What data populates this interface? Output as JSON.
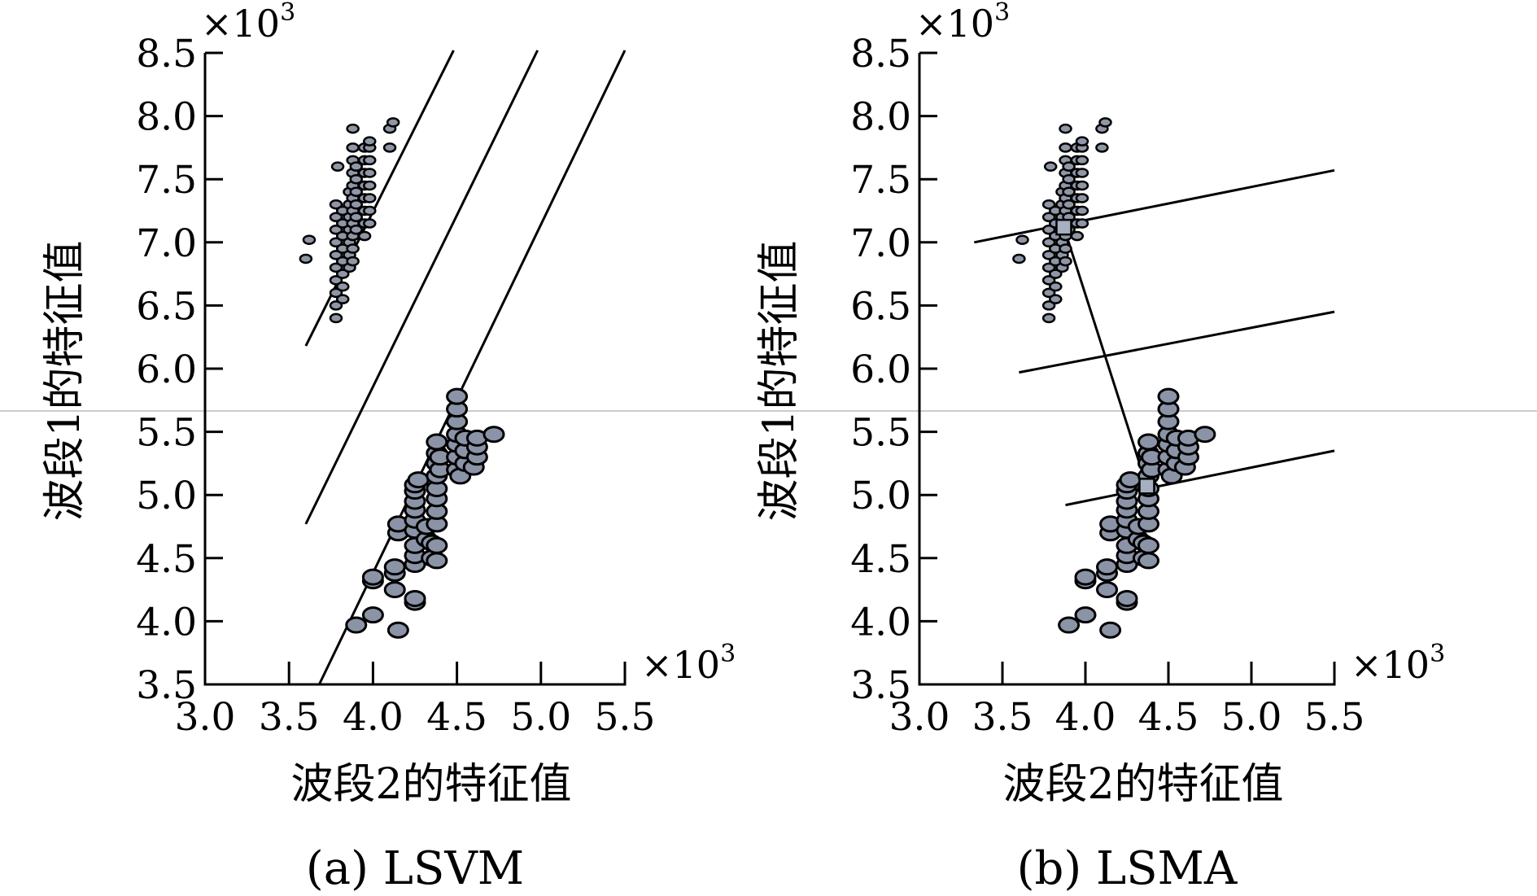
{
  "chart_data": [
    {
      "type": "scatter",
      "caption": "(a) LSVM",
      "xlabel": "波段2的特征值",
      "ylabel": "波段1的特征值",
      "x_multiplier": "×10",
      "x_multiplier_exp": "3",
      "y_multiplier": "×10",
      "y_multiplier_exp": "3",
      "xlim": [
        3.0,
        5.5
      ],
      "ylim": [
        3.5,
        8.5
      ],
      "xticks": [
        "3.0",
        "3.5",
        "4.0",
        "4.5",
        "5.0",
        "5.5"
      ],
      "yticks": [
        "3.5",
        "4.0",
        "4.5",
        "5.0",
        "5.5",
        "6.0",
        "6.5",
        "7.0",
        "7.5",
        "8.0",
        "8.5"
      ],
      "series": [
        {
          "marker": "small",
          "points": [
            [
              3.62,
              7.02
            ],
            [
              3.6,
              6.87
            ],
            [
              3.78,
              6.4
            ],
            [
              3.78,
              6.5
            ],
            [
              3.78,
              6.6
            ],
            [
              3.78,
              6.7
            ],
            [
              3.78,
              6.8
            ],
            [
              3.78,
              6.9
            ],
            [
              3.78,
              7.0
            ],
            [
              3.78,
              7.1
            ],
            [
              3.78,
              7.2
            ],
            [
              3.78,
              7.3
            ],
            [
              3.79,
              7.6
            ],
            [
              3.82,
              6.55
            ],
            [
              3.82,
              6.65
            ],
            [
              3.82,
              6.75
            ],
            [
              3.82,
              6.85
            ],
            [
              3.82,
              6.95
            ],
            [
              3.82,
              7.05
            ],
            [
              3.82,
              7.15
            ],
            [
              3.82,
              7.25
            ],
            [
              3.86,
              6.8
            ],
            [
              3.86,
              6.9
            ],
            [
              3.86,
              7.0
            ],
            [
              3.86,
              7.1
            ],
            [
              3.86,
              7.2
            ],
            [
              3.86,
              7.3
            ],
            [
              3.86,
              7.4
            ],
            [
              3.88,
              6.85
            ],
            [
              3.88,
              6.95
            ],
            [
              3.88,
              7.05
            ],
            [
              3.88,
              7.15
            ],
            [
              3.88,
              7.25
            ],
            [
              3.88,
              7.35
            ],
            [
              3.88,
              7.45
            ],
            [
              3.88,
              7.55
            ],
            [
              3.88,
              7.65
            ],
            [
              3.88,
              7.75
            ],
            [
              3.88,
              7.9
            ],
            [
              3.9,
              7.1
            ],
            [
              3.9,
              7.2
            ],
            [
              3.9,
              7.3
            ],
            [
              3.9,
              7.4
            ],
            [
              3.9,
              7.5
            ],
            [
              3.9,
              7.6
            ],
            [
              3.95,
              7.05
            ],
            [
              3.95,
              7.15
            ],
            [
              3.95,
              7.25
            ],
            [
              3.95,
              7.35
            ],
            [
              3.95,
              7.45
            ],
            [
              3.95,
              7.55
            ],
            [
              3.95,
              7.65
            ],
            [
              3.95,
              7.75
            ],
            [
              3.98,
              7.15
            ],
            [
              3.98,
              7.25
            ],
            [
              3.98,
              7.35
            ],
            [
              3.98,
              7.45
            ],
            [
              3.98,
              7.55
            ],
            [
              3.98,
              7.65
            ],
            [
              3.98,
              7.75
            ],
            [
              3.98,
              7.8
            ],
            [
              4.1,
              7.75
            ],
            [
              4.1,
              7.9
            ],
            [
              4.12,
              7.95
            ]
          ]
        },
        {
          "marker": "large",
          "points": [
            [
              3.9,
              3.97
            ],
            [
              4.0,
              4.05
            ],
            [
              4.0,
              4.32
            ],
            [
              4.0,
              4.35
            ],
            [
              4.15,
              3.93
            ],
            [
              4.13,
              4.25
            ],
            [
              4.13,
              4.38
            ],
            [
              4.13,
              4.43
            ],
            [
              4.15,
              4.7
            ],
            [
              4.15,
              4.77
            ],
            [
              4.25,
              4.15
            ],
            [
              4.25,
              4.18
            ],
            [
              4.25,
              4.45
            ],
            [
              4.25,
              4.52
            ],
            [
              4.25,
              4.6
            ],
            [
              4.25,
              4.72
            ],
            [
              4.25,
              4.8
            ],
            [
              4.25,
              4.88
            ],
            [
              4.25,
              4.95
            ],
            [
              4.25,
              5.03
            ],
            [
              4.25,
              5.08
            ],
            [
              4.27,
              5.12
            ],
            [
              4.32,
              4.65
            ],
            [
              4.32,
              4.75
            ],
            [
              4.35,
              4.5
            ],
            [
              4.35,
              4.62
            ],
            [
              4.38,
              4.48
            ],
            [
              4.38,
              4.6
            ],
            [
              4.38,
              4.77
            ],
            [
              4.38,
              4.87
            ],
            [
              4.38,
              4.97
            ],
            [
              4.38,
              5.05
            ],
            [
              4.38,
              5.15
            ],
            [
              4.38,
              5.25
            ],
            [
              4.38,
              5.33
            ],
            [
              4.38,
              5.42
            ],
            [
              4.4,
              5.2
            ],
            [
              4.4,
              5.3
            ],
            [
              4.5,
              5.2
            ],
            [
              4.5,
              5.3
            ],
            [
              4.5,
              5.4
            ],
            [
              4.5,
              5.48
            ],
            [
              4.5,
              5.58
            ],
            [
              4.5,
              5.68
            ],
            [
              4.5,
              5.78
            ],
            [
              4.52,
              5.15
            ],
            [
              4.55,
              5.25
            ],
            [
              4.55,
              5.35
            ],
            [
              4.55,
              5.45
            ],
            [
              4.6,
              5.22
            ],
            [
              4.62,
              5.3
            ],
            [
              4.62,
              5.38
            ],
            [
              4.62,
              5.45
            ],
            [
              4.72,
              5.48
            ]
          ]
        }
      ],
      "lines": [
        {
          "from": [
            3.6,
            6.18
          ],
          "to": [
            4.48,
            8.52
          ]
        },
        {
          "from": [
            3.6,
            4.77
          ],
          "to": [
            4.98,
            8.52
          ]
        },
        {
          "from": [
            3.68,
            3.5
          ],
          "to": [
            5.5,
            8.52
          ]
        }
      ]
    },
    {
      "type": "scatter",
      "caption": "(b) LSMA",
      "xlabel": "波段2的特征值",
      "ylabel": "波段1的特征值",
      "x_multiplier": "×10",
      "x_multiplier_exp": "3",
      "y_multiplier": "×10",
      "y_multiplier_exp": "3",
      "xlim": [
        3.0,
        5.5
      ],
      "ylim": [
        3.5,
        8.5
      ],
      "xticks": [
        "3.0",
        "3.5",
        "4.0",
        "4.5",
        "5.0",
        "5.5"
      ],
      "yticks": [
        "3.5",
        "4.0",
        "4.5",
        "5.0",
        "5.5",
        "6.0",
        "6.5",
        "7.0",
        "7.5",
        "8.0",
        "8.5"
      ],
      "series": [
        {
          "marker": "small",
          "points": [
            [
              3.62,
              7.02
            ],
            [
              3.6,
              6.87
            ],
            [
              3.78,
              6.4
            ],
            [
              3.78,
              6.5
            ],
            [
              3.78,
              6.6
            ],
            [
              3.78,
              6.7
            ],
            [
              3.78,
              6.8
            ],
            [
              3.78,
              6.9
            ],
            [
              3.78,
              7.0
            ],
            [
              3.78,
              7.1
            ],
            [
              3.78,
              7.2
            ],
            [
              3.78,
              7.3
            ],
            [
              3.79,
              7.6
            ],
            [
              3.82,
              6.55
            ],
            [
              3.82,
              6.65
            ],
            [
              3.82,
              6.75
            ],
            [
              3.82,
              6.85
            ],
            [
              3.82,
              6.95
            ],
            [
              3.82,
              7.05
            ],
            [
              3.82,
              7.15
            ],
            [
              3.82,
              7.25
            ],
            [
              3.86,
              6.8
            ],
            [
              3.86,
              6.9
            ],
            [
              3.86,
              7.0
            ],
            [
              3.86,
              7.1
            ],
            [
              3.86,
              7.2
            ],
            [
              3.86,
              7.3
            ],
            [
              3.86,
              7.4
            ],
            [
              3.88,
              6.85
            ],
            [
              3.88,
              6.95
            ],
            [
              3.88,
              7.05
            ],
            [
              3.88,
              7.15
            ],
            [
              3.88,
              7.25
            ],
            [
              3.88,
              7.35
            ],
            [
              3.88,
              7.45
            ],
            [
              3.88,
              7.55
            ],
            [
              3.88,
              7.65
            ],
            [
              3.88,
              7.75
            ],
            [
              3.88,
              7.9
            ],
            [
              3.9,
              7.1
            ],
            [
              3.9,
              7.2
            ],
            [
              3.9,
              7.3
            ],
            [
              3.9,
              7.4
            ],
            [
              3.9,
              7.5
            ],
            [
              3.9,
              7.6
            ],
            [
              3.95,
              7.05
            ],
            [
              3.95,
              7.15
            ],
            [
              3.95,
              7.25
            ],
            [
              3.95,
              7.35
            ],
            [
              3.95,
              7.45
            ],
            [
              3.95,
              7.55
            ],
            [
              3.95,
              7.65
            ],
            [
              3.95,
              7.75
            ],
            [
              3.98,
              7.15
            ],
            [
              3.98,
              7.25
            ],
            [
              3.98,
              7.35
            ],
            [
              3.98,
              7.45
            ],
            [
              3.98,
              7.55
            ],
            [
              3.98,
              7.65
            ],
            [
              3.98,
              7.75
            ],
            [
              3.98,
              7.8
            ],
            [
              4.1,
              7.75
            ],
            [
              4.1,
              7.9
            ],
            [
              4.12,
              7.95
            ]
          ]
        },
        {
          "marker": "large",
          "points": [
            [
              3.9,
              3.97
            ],
            [
              4.0,
              4.05
            ],
            [
              4.0,
              4.32
            ],
            [
              4.0,
              4.35
            ],
            [
              4.15,
              3.93
            ],
            [
              4.13,
              4.25
            ],
            [
              4.13,
              4.38
            ],
            [
              4.13,
              4.43
            ],
            [
              4.15,
              4.7
            ],
            [
              4.15,
              4.77
            ],
            [
              4.25,
              4.15
            ],
            [
              4.25,
              4.18
            ],
            [
              4.25,
              4.45
            ],
            [
              4.25,
              4.52
            ],
            [
              4.25,
              4.6
            ],
            [
              4.25,
              4.72
            ],
            [
              4.25,
              4.8
            ],
            [
              4.25,
              4.88
            ],
            [
              4.25,
              4.95
            ],
            [
              4.25,
              5.03
            ],
            [
              4.25,
              5.08
            ],
            [
              4.27,
              5.12
            ],
            [
              4.32,
              4.65
            ],
            [
              4.32,
              4.75
            ],
            [
              4.35,
              4.5
            ],
            [
              4.35,
              4.62
            ],
            [
              4.38,
              4.48
            ],
            [
              4.38,
              4.6
            ],
            [
              4.38,
              4.77
            ],
            [
              4.38,
              4.87
            ],
            [
              4.38,
              4.97
            ],
            [
              4.38,
              5.05
            ],
            [
              4.38,
              5.15
            ],
            [
              4.38,
              5.25
            ],
            [
              4.38,
              5.33
            ],
            [
              4.38,
              5.42
            ],
            [
              4.4,
              5.2
            ],
            [
              4.4,
              5.3
            ],
            [
              4.5,
              5.2
            ],
            [
              4.5,
              5.3
            ],
            [
              4.5,
              5.4
            ],
            [
              4.5,
              5.48
            ],
            [
              4.5,
              5.58
            ],
            [
              4.5,
              5.68
            ],
            [
              4.5,
              5.78
            ],
            [
              4.52,
              5.15
            ],
            [
              4.55,
              5.25
            ],
            [
              4.55,
              5.35
            ],
            [
              4.55,
              5.45
            ],
            [
              4.6,
              5.22
            ],
            [
              4.62,
              5.3
            ],
            [
              4.62,
              5.38
            ],
            [
              4.62,
              5.45
            ],
            [
              4.72,
              5.48
            ]
          ]
        }
      ],
      "lines": [
        {
          "from": [
            3.33,
            7.0
          ],
          "to": [
            5.5,
            7.57
          ]
        },
        {
          "from": [
            3.6,
            5.97
          ],
          "to": [
            5.5,
            6.45
          ]
        },
        {
          "from": [
            3.88,
            4.92
          ],
          "to": [
            5.5,
            5.35
          ]
        },
        {
          "from": [
            3.87,
            7.12
          ],
          "to": [
            4.37,
            5.07
          ]
        }
      ],
      "endmembers": [
        [
          3.87,
          7.12
        ],
        [
          4.37,
          5.07
        ]
      ]
    }
  ]
}
